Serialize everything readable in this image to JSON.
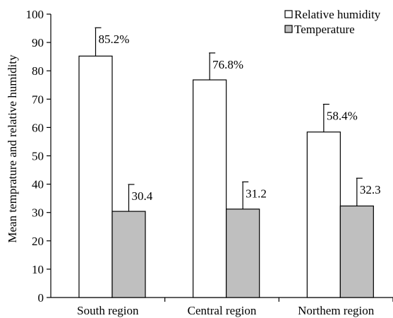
{
  "chart_data": {
    "type": "bar",
    "ylabel": "Mean temprature and relative humidity",
    "xlabel": "",
    "ylim": [
      0,
      100
    ],
    "yticks": [
      0,
      10,
      20,
      30,
      40,
      50,
      60,
      70,
      80,
      90,
      100
    ],
    "categories": [
      "South region",
      "Central region",
      "Northem region"
    ],
    "series": [
      {
        "name": "Relative humidity",
        "color": "#ffffff",
        "values": [
          85.2,
          76.8,
          58.4
        ],
        "error": [
          10,
          9.5,
          9.8
        ],
        "labels": [
          "85.2%",
          "76.8%",
          "58.4%"
        ]
      },
      {
        "name": "Temperature",
        "color": "#bfbfbf",
        "values": [
          30.4,
          31.2,
          32.3
        ],
        "error": [
          9.5,
          9.6,
          9.8
        ],
        "labels": [
          "30.4",
          "31.2",
          "32.3"
        ]
      }
    ],
    "legend": "top-right",
    "grid": false
  }
}
